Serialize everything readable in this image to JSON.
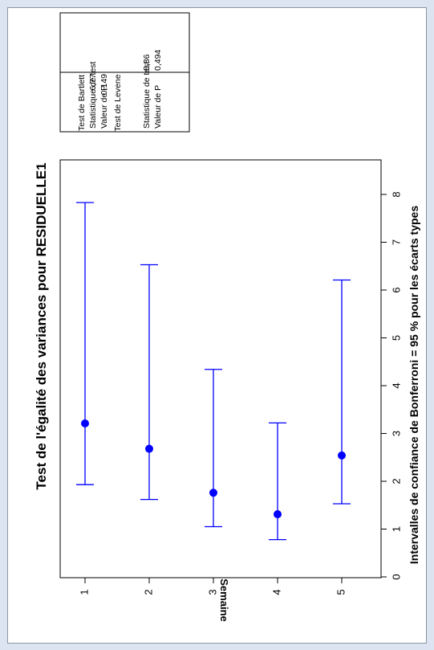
{
  "chart_data": {
    "type": "errorbar",
    "title": "Test de l'égalité des variances pour RESIDUELLE1",
    "xlabel": "Intervalles de confiance de Bonferroni = 95 % pour les écarts types",
    "ylabel": "Semaine",
    "categories": [
      "1",
      "2",
      "3",
      "4",
      "5"
    ],
    "points": [
      {
        "category": "1",
        "estimate": 3.21,
        "lower": 1.93,
        "upper": 7.83
      },
      {
        "category": "2",
        "estimate": 2.68,
        "lower": 1.62,
        "upper": 6.53
      },
      {
        "category": "3",
        "estimate": 1.76,
        "lower": 1.05,
        "upper": 4.34
      },
      {
        "category": "4",
        "estimate": 1.31,
        "lower": 0.78,
        "upper": 3.22
      },
      {
        "category": "5",
        "estimate": 2.54,
        "lower": 1.53,
        "upper": 6.21
      }
    ],
    "value_axis": {
      "min": 0,
      "max": 8,
      "ticks": [
        "0",
        "1",
        "2",
        "3",
        "4",
        "5",
        "6",
        "7",
        "8"
      ]
    },
    "marker_color": "#0000ff",
    "orientation": "rotated 90 degrees counterclockwise",
    "stats_box": {
      "bartlett_title": "Test de Bartlett",
      "bartlett_stat_label": "Statistique de test",
      "bartlett_stat_value": "6,77",
      "bartlett_p_label": "Valeur de P",
      "bartlett_p_value": "0,149",
      "levene_title": "Test de Levene",
      "levene_stat_label": "Statistique de test",
      "levene_stat_value": "0,86",
      "levene_p_label": "Valeur de P",
      "levene_p_value": "0,494"
    }
  }
}
